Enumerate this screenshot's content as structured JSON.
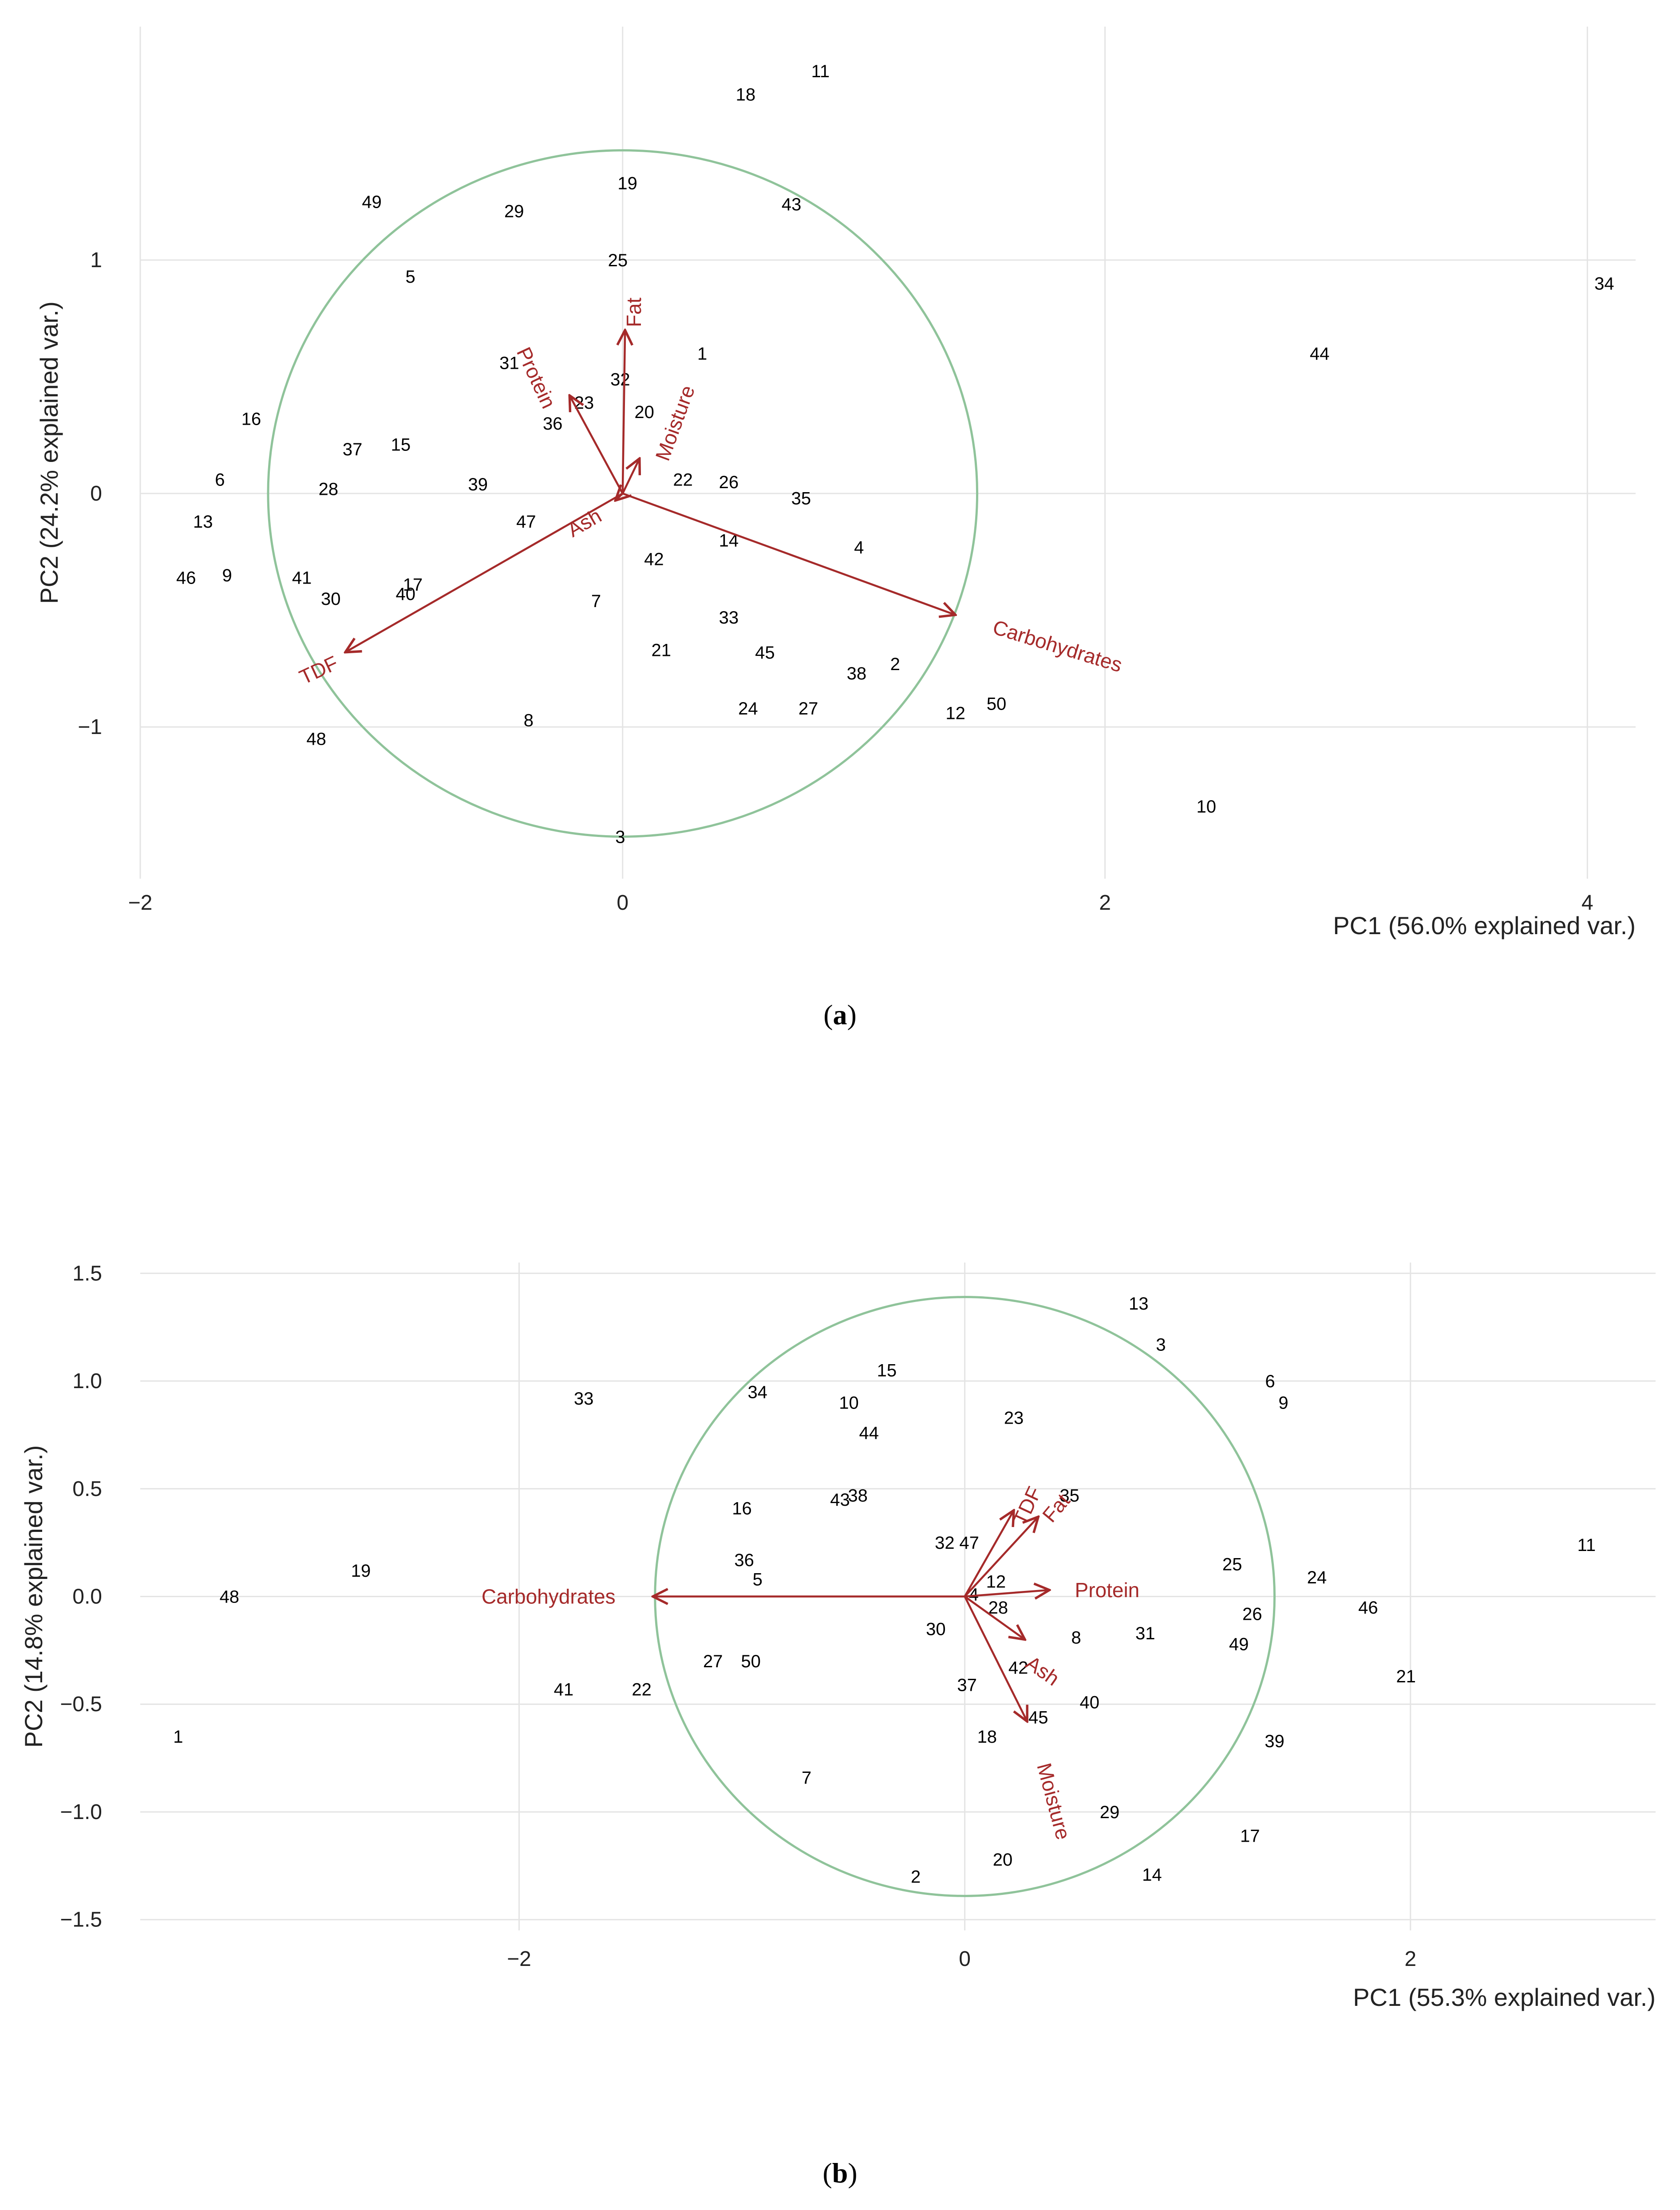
{
  "chart_data": [
    {
      "type": "scatter",
      "subtype": "pca-biplot",
      "caption_label": "a",
      "xlabel": "PC1 (56.0% explained var.)",
      "ylabel": "PC2 (24.2% explained var.)",
      "xlim": [
        -2.0,
        4.2
      ],
      "ylim": [
        -1.65,
        2.0
      ],
      "x_ticks": [
        -2,
        0,
        2,
        4
      ],
      "x_tick_labels": [
        "−2",
        "0",
        "2",
        "4"
      ],
      "y_ticks": [
        -1,
        0,
        1
      ],
      "y_tick_labels": [
        "−1",
        "0",
        "1"
      ],
      "grid": true,
      "circle": {
        "cx": 0,
        "cy": 0,
        "r": 1.47
      },
      "points": [
        {
          "label": "1",
          "x": 0.33,
          "y": 0.6
        },
        {
          "label": "2",
          "x": 1.13,
          "y": -0.73
        },
        {
          "label": "3",
          "x": -0.01,
          "y": -1.47
        },
        {
          "label": "4",
          "x": 0.98,
          "y": -0.23
        },
        {
          "label": "5",
          "x": -0.88,
          "y": 0.93
        },
        {
          "label": "6",
          "x": -1.67,
          "y": 0.06
        },
        {
          "label": "7",
          "x": -0.11,
          "y": -0.46
        },
        {
          "label": "8",
          "x": -0.39,
          "y": -0.97
        },
        {
          "label": "9",
          "x": -1.64,
          "y": -0.35
        },
        {
          "label": "10",
          "x": 2.42,
          "y": -1.34
        },
        {
          "label": "11",
          "x": 0.82,
          "y": 1.81
        },
        {
          "label": "12",
          "x": 1.38,
          "y": -0.94
        },
        {
          "label": "13",
          "x": -1.74,
          "y": -0.12
        },
        {
          "label": "14",
          "x": 0.44,
          "y": -0.2
        },
        {
          "label": "15",
          "x": -0.92,
          "y": 0.21
        },
        {
          "label": "16",
          "x": -1.54,
          "y": 0.32
        },
        {
          "label": "17",
          "x": -0.87,
          "y": -0.39
        },
        {
          "label": "18",
          "x": 0.51,
          "y": 1.71
        },
        {
          "label": "19",
          "x": 0.02,
          "y": 1.33
        },
        {
          "label": "20",
          "x": 0.09,
          "y": 0.35
        },
        {
          "label": "21",
          "x": 0.16,
          "y": -0.67
        },
        {
          "label": "22",
          "x": 0.25,
          "y": 0.06
        },
        {
          "label": "23",
          "x": -0.16,
          "y": 0.39
        },
        {
          "label": "24",
          "x": 0.52,
          "y": -0.92
        },
        {
          "label": "25",
          "x": -0.02,
          "y": 1.0
        },
        {
          "label": "26",
          "x": 0.44,
          "y": 0.05
        },
        {
          "label": "27",
          "x": 0.77,
          "y": -0.92
        },
        {
          "label": "28",
          "x": -1.22,
          "y": 0.02
        },
        {
          "label": "29",
          "x": -0.45,
          "y": 1.21
        },
        {
          "label": "30",
          "x": -1.21,
          "y": -0.45
        },
        {
          "label": "31",
          "x": -0.47,
          "y": 0.56
        },
        {
          "label": "32",
          "x": -0.01,
          "y": 0.49
        },
        {
          "label": "33",
          "x": 0.44,
          "y": -0.53
        },
        {
          "label": "34",
          "x": 4.07,
          "y": 0.9
        },
        {
          "label": "35",
          "x": 0.74,
          "y": -0.02
        },
        {
          "label": "36",
          "x": -0.29,
          "y": 0.3
        },
        {
          "label": "37",
          "x": -1.12,
          "y": 0.19
        },
        {
          "label": "38",
          "x": 0.97,
          "y": -0.77
        },
        {
          "label": "39",
          "x": -0.6,
          "y": 0.04
        },
        {
          "label": "40",
          "x": -0.9,
          "y": -0.43
        },
        {
          "label": "41",
          "x": -1.33,
          "y": -0.36
        },
        {
          "label": "42",
          "x": 0.13,
          "y": -0.28
        },
        {
          "label": "43",
          "x": 0.7,
          "y": 1.24
        },
        {
          "label": "44",
          "x": 2.89,
          "y": 0.6
        },
        {
          "label": "45",
          "x": 0.59,
          "y": -0.68
        },
        {
          "label": "46",
          "x": -1.81,
          "y": -0.36
        },
        {
          "label": "47",
          "x": -0.4,
          "y": -0.12
        },
        {
          "label": "48",
          "x": -1.27,
          "y": -1.05
        },
        {
          "label": "49",
          "x": -1.04,
          "y": 1.25
        },
        {
          "label": "50",
          "x": 1.55,
          "y": -0.9
        }
      ],
      "loadings": [
        {
          "name": "Fat",
          "x": 0.01,
          "y": 0.7
        },
        {
          "name": "Protein",
          "x": -0.22,
          "y": 0.42
        },
        {
          "name": "Moisture",
          "x": 0.07,
          "y": 0.15
        },
        {
          "name": "Ash",
          "x": -0.03,
          "y": -0.03
        },
        {
          "name": "TDF",
          "x": -1.15,
          "y": -0.68
        },
        {
          "name": "Carbohydrates",
          "x": 1.38,
          "y": -0.52
        }
      ]
    },
    {
      "type": "scatter",
      "subtype": "pca-biplot",
      "caption_label": "b",
      "xlabel": "PC1 (55.3% explained var.)",
      "ylabel": "PC2 (14.8% explained var.)",
      "xlim": [
        -3.7,
        3.1
      ],
      "ylim": [
        -1.55,
        1.55
      ],
      "x_ticks": [
        -2,
        0,
        2
      ],
      "x_tick_labels": [
        "−2",
        "0",
        "2"
      ],
      "y_ticks": [
        -1.5,
        -1.0,
        -0.5,
        0.0,
        0.5,
        1.0,
        1.5
      ],
      "y_tick_labels": [
        "−1.5",
        "−1.0",
        "−0.5",
        "0.0",
        "0.5",
        "1.0",
        "1.5"
      ],
      "grid": true,
      "circle": {
        "cx": 0,
        "cy": 0,
        "r": 1.39
      },
      "points": [
        {
          "label": "1",
          "x": -3.53,
          "y": -0.65
        },
        {
          "label": "2",
          "x": -0.22,
          "y": -1.3
        },
        {
          "label": "3",
          "x": 0.88,
          "y": 1.17
        },
        {
          "label": "4",
          "x": 0.04,
          "y": 0.01
        },
        {
          "label": "5",
          "x": -0.93,
          "y": 0.08
        },
        {
          "label": "6",
          "x": 1.37,
          "y": 1.0
        },
        {
          "label": "7",
          "x": -0.71,
          "y": -0.84
        },
        {
          "label": "8",
          "x": 0.5,
          "y": -0.19
        },
        {
          "label": "9",
          "x": 1.43,
          "y": 0.9
        },
        {
          "label": "10",
          "x": -0.52,
          "y": 0.9
        },
        {
          "label": "11",
          "x": 2.79,
          "y": 0.24
        },
        {
          "label": "12",
          "x": 0.14,
          "y": 0.07
        },
        {
          "label": "13",
          "x": 0.78,
          "y": 1.36
        },
        {
          "label": "14",
          "x": 0.84,
          "y": -1.29
        },
        {
          "label": "15",
          "x": -0.35,
          "y": 1.05
        },
        {
          "label": "16",
          "x": -1.0,
          "y": 0.41
        },
        {
          "label": "17",
          "x": 1.28,
          "y": -1.11
        },
        {
          "label": "18",
          "x": 0.1,
          "y": -0.65
        },
        {
          "label": "19",
          "x": -2.71,
          "y": 0.12
        },
        {
          "label": "20",
          "x": 0.17,
          "y": -1.22
        },
        {
          "label": "21",
          "x": 1.98,
          "y": -0.37
        },
        {
          "label": "22",
          "x": -1.45,
          "y": -0.43
        },
        {
          "label": "23",
          "x": 0.22,
          "y": 0.83
        },
        {
          "label": "24",
          "x": 1.58,
          "y": 0.09
        },
        {
          "label": "25",
          "x": 1.2,
          "y": 0.15
        },
        {
          "label": "26",
          "x": 1.29,
          "y": -0.08
        },
        {
          "label": "27",
          "x": -1.13,
          "y": -0.3
        },
        {
          "label": "28",
          "x": 0.15,
          "y": -0.05
        },
        {
          "label": "29",
          "x": 0.65,
          "y": -1.0
        },
        {
          "label": "30",
          "x": -0.13,
          "y": -0.15
        },
        {
          "label": "31",
          "x": 0.81,
          "y": -0.17
        },
        {
          "label": "32",
          "x": -0.09,
          "y": 0.25
        },
        {
          "label": "33",
          "x": -1.71,
          "y": 0.92
        },
        {
          "label": "34",
          "x": -0.93,
          "y": 0.95
        },
        {
          "label": "35",
          "x": 0.47,
          "y": 0.47
        },
        {
          "label": "36",
          "x": -0.99,
          "y": 0.17
        },
        {
          "label": "37",
          "x": 0.01,
          "y": -0.41
        },
        {
          "label": "38",
          "x": -0.48,
          "y": 0.47
        },
        {
          "label": "39",
          "x": 1.39,
          "y": -0.67
        },
        {
          "label": "40",
          "x": 0.56,
          "y": -0.49
        },
        {
          "label": "41",
          "x": -1.8,
          "y": -0.43
        },
        {
          "label": "42",
          "x": 0.24,
          "y": -0.33
        },
        {
          "label": "43",
          "x": -0.56,
          "y": 0.45
        },
        {
          "label": "44",
          "x": -0.43,
          "y": 0.76
        },
        {
          "label": "45",
          "x": 0.33,
          "y": -0.56
        },
        {
          "label": "46",
          "x": 1.81,
          "y": -0.05
        },
        {
          "label": "47",
          "x": 0.02,
          "y": 0.25
        },
        {
          "label": "48",
          "x": -3.3,
          "y": 0.0
        },
        {
          "label": "49",
          "x": 1.23,
          "y": -0.22
        },
        {
          "label": "50",
          "x": -0.96,
          "y": -0.3
        }
      ],
      "loadings": [
        {
          "name": "TDF",
          "x": 0.22,
          "y": 0.4
        },
        {
          "name": "Fat",
          "x": 0.33,
          "y": 0.37
        },
        {
          "name": "Protein",
          "x": 0.38,
          "y": 0.03
        },
        {
          "name": "Ash",
          "x": 0.27,
          "y": -0.2
        },
        {
          "name": "Moisture",
          "x": 0.28,
          "y": -0.58
        },
        {
          "name": "Carbohydrates",
          "x": -1.4,
          "y": 0.0
        }
      ]
    }
  ],
  "colors": {
    "grid": "#e4e4e4",
    "circle": "#8fc39a",
    "arrow": "#a52a2a",
    "point_text": "#000000",
    "axis_text": "#222222"
  }
}
